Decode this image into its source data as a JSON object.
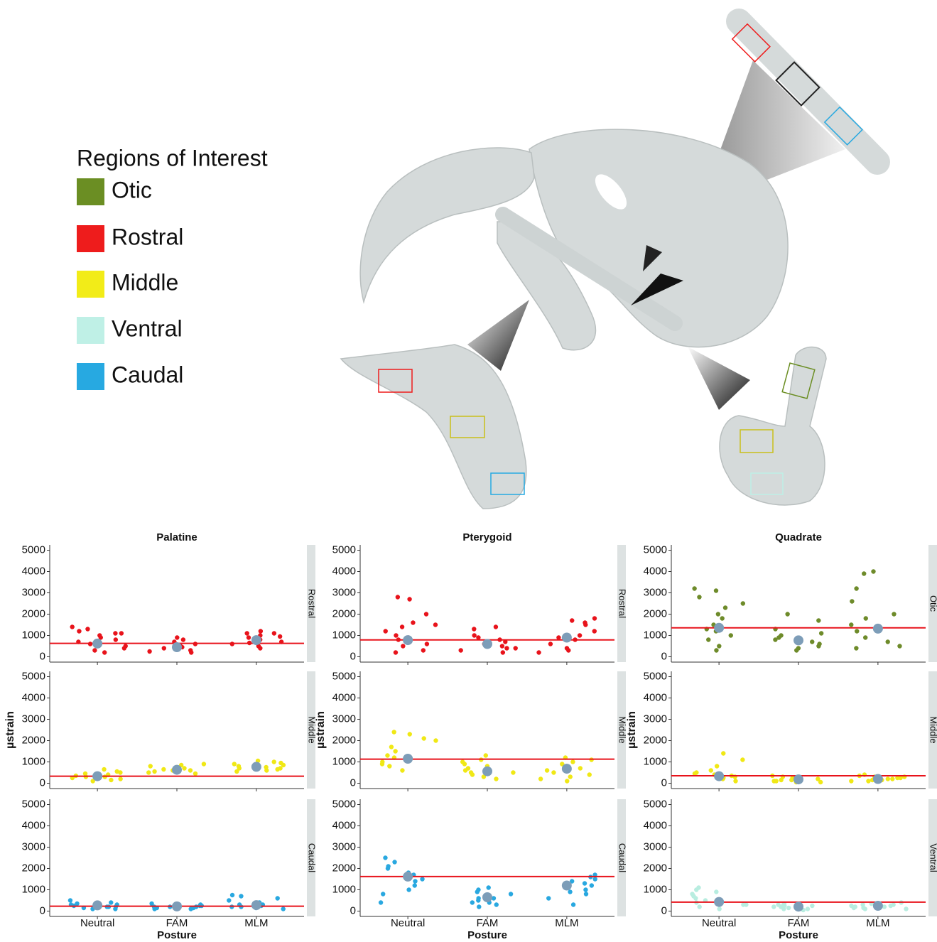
{
  "legend": {
    "title": "Regions of Interest",
    "items": [
      {
        "name": "Otic",
        "color": "#6b8e23"
      },
      {
        "name": "Rostral",
        "color": "#ee1c1c"
      },
      {
        "name": "Middle",
        "color": "#f2ec18"
      },
      {
        "name": "Ventral",
        "color": "#bff0e6"
      },
      {
        "name": "Caudal",
        "color": "#27a9e1"
      }
    ]
  },
  "chart_data": {
    "type": "strip",
    "x_label": "Posture",
    "y_label": "µstrain",
    "categories": [
      "Neutral",
      "FAM",
      "MLM"
    ],
    "ylim": [
      -250,
      5250
    ],
    "yticks": [
      0,
      1000,
      2000,
      3000,
      4000,
      5000
    ],
    "line_color": "#e8131b",
    "mean_color": "#7d9db8",
    "facets": [
      {
        "title": "Palatine",
        "panels": [
          {
            "label": "Rostral",
            "color": "#e8131b",
            "overall_mean": 630,
            "means": [
              620,
              450,
              780
            ],
            "values": [
              [
                1100,
                1400,
                900,
                600,
                300,
                200,
                700,
                1300,
                1000,
                400,
                800,
                1200,
                500,
                1100
              ],
              [
                300,
                500,
                700,
                400,
                600,
                200,
                900,
                350,
                550,
                250,
                450,
                800
              ],
              [
                600,
                900,
                1100,
                700,
                500,
                1000,
                800,
                1200,
                400,
                650,
                950,
                1100
              ]
            ]
          },
          {
            "label": "Middle",
            "color": "#f0e815",
            "overall_mean": 330,
            "means": [
              330,
              630,
              770
            ],
            "values": [
              [
                100,
                300,
                500,
                650,
                200,
                400,
                350,
                550,
                250,
                450,
                150,
                300
              ],
              [
                450,
                700,
                800,
                550,
                650,
                900,
                600,
                500,
                750,
                850,
                600,
                700
              ],
              [
                550,
                900,
                1000,
                700,
                800,
                600,
                950,
                750,
                850,
                650,
                1050,
                700
              ]
            ]
          },
          {
            "label": "Caudal",
            "color": "#29a8e0",
            "overall_mean": 230,
            "means": [
              270,
              220,
              280
            ],
            "values": [
              [
                100,
                300,
                500,
                200,
                250,
                150,
                350,
                200,
                100,
                400,
                300,
                200
              ],
              [
                100,
                250,
                300,
                150,
                200,
                100,
                350,
                200,
                250,
                150,
                300,
                200
              ],
              [
                100,
                300,
                700,
                500,
                200,
                250,
                600,
                400,
                750,
                300,
                200,
                150
              ]
            ]
          }
        ]
      },
      {
        "title": "Pterygoid",
        "panels": [
          {
            "label": "Rostral",
            "color": "#e8131b",
            "overall_mean": 790,
            "means": [
              780,
              600,
              900
            ],
            "values": [
              [
                200,
                500,
                900,
                1200,
                1600,
                2800,
                2700,
                1400,
                800,
                300,
                1000,
                2000,
                600,
                1500
              ],
              [
                200,
                400,
                700,
                1000,
                1300,
                500,
                600,
                800,
                300,
                900,
                400,
                1400
              ],
              [
                200,
                600,
                1000,
                1500,
                1800,
                300,
                800,
                1200,
                1700,
                400,
                900,
                1600
              ]
            ]
          },
          {
            "label": "Middle",
            "color": "#f0e815",
            "overall_mean": 1130,
            "means": [
              1150,
              560,
              680
            ],
            "values": [
              [
                2400,
                2300,
                2000,
                1700,
                1500,
                1200,
                900,
                600,
                800,
                1300,
                2100,
                1000
              ],
              [
                200,
                500,
                800,
                1100,
                1300,
                400,
                600,
                300,
                900,
                700,
                1000,
                500
              ],
              [
                100,
                400,
                700,
                1000,
                1200,
                300,
                600,
                900,
                500,
                800,
                1100,
                200
              ]
            ]
          },
          {
            "label": "Caudal",
            "color": "#29a8e0",
            "overall_mean": 1620,
            "means": [
              1620,
              650,
              1200
            ],
            "values": [
              [
                2500,
                2300,
                2100,
                1800,
                1500,
                1200,
                800,
                400,
                1000,
                2000,
                1700,
                1400
              ],
              [
                200,
                400,
                600,
                900,
                1100,
                300,
                700,
                500,
                800,
                1000,
                400,
                600
              ],
              [
                300,
                800,
                1200,
                1500,
                1700,
                1300,
                1000,
                600,
                1400,
                1600,
                1100,
                900
              ]
            ]
          }
        ]
      },
      {
        "title": "Quadrate",
        "panels": [
          {
            "label": "Otic",
            "color": "#6e8b2a",
            "overall_mean": 1360,
            "means": [
              1360,
              770,
              1320
            ],
            "values": [
              [
                300,
                800,
                1300,
                1800,
                2300,
                2800,
                3200,
                3100,
                2500,
                1000,
                1500,
                500,
                2000,
                1200
              ],
              [
                300,
                500,
                700,
                1000,
                1300,
                1700,
                2000,
                600,
                800,
                400,
                900,
                1100
              ],
              [
                400,
                900,
                1500,
                2000,
                2600,
                3200,
                4000,
                3900,
                500,
                1200,
                1800,
                700
              ]
            ]
          },
          {
            "label": "Middle",
            "color": "#f0e815",
            "overall_mean": 350,
            "means": [
              330,
              180,
              200
            ],
            "values": [
              [
                100,
                300,
                500,
                800,
                1400,
                1100,
                400,
                200,
                350,
                600,
                250,
                450
              ],
              [
                50,
                150,
                250,
                350,
                100,
                200,
                300,
                150,
                250,
                100,
                200,
                50
              ],
              [
                100,
                200,
                300,
                400,
                150,
                250,
                350,
                200,
                300,
                100,
                250,
                150
              ]
            ]
          },
          {
            "label": "Ventral",
            "color": "#b8ede0",
            "overall_mean": 420,
            "means": [
              430,
              210,
              250
            ],
            "values": [
              [
                100,
                300,
                600,
                900,
                1100,
                700,
                200,
                500,
                400,
                800,
                300,
                1000
              ],
              [
                50,
                150,
                250,
                350,
                100,
                200,
                300,
                150,
                250,
                100,
                200,
                300
              ],
              [
                100,
                200,
                300,
                400,
                150,
                250,
                350,
                200,
                300,
                150,
                250,
                100
              ]
            ]
          }
        ]
      }
    ]
  }
}
